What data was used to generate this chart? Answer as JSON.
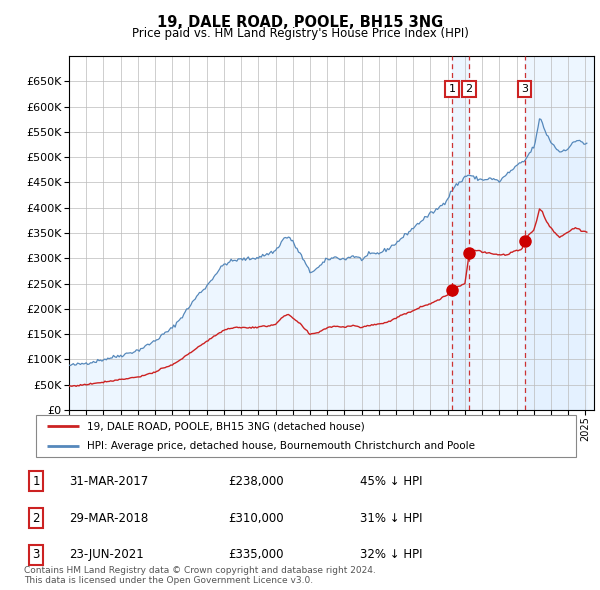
{
  "title": "19, DALE ROAD, POOLE, BH15 3NG",
  "subtitle": "Price paid vs. HM Land Registry's House Price Index (HPI)",
  "hpi_legend": "HPI: Average price, detached house, Bournemouth Christchurch and Poole",
  "property_legend": "19, DALE ROAD, POOLE, BH15 3NG (detached house)",
  "footer_line1": "Contains HM Land Registry data © Crown copyright and database right 2024.",
  "footer_line2": "This data is licensed under the Open Government Licence v3.0.",
  "sales": [
    {
      "num": "1",
      "date": "31-MAR-2017",
      "price": "£238,000",
      "pct": "45% ↓ HPI"
    },
    {
      "num": "2",
      "date": "29-MAR-2018",
      "price": "£310,000",
      "pct": "31% ↓ HPI"
    },
    {
      "num": "3",
      "date": "23-JUN-2021",
      "price": "£335,000",
      "pct": "32% ↓ HPI"
    }
  ],
  "sale_dates_decimal": [
    2017.247,
    2018.247,
    2021.478
  ],
  "sale_prices": [
    238000,
    310000,
    335000
  ],
  "vline_color": "#CC3333",
  "sale_marker_color": "#CC0000",
  "hpi_line_color": "#5588BB",
  "hpi_fill_color": "#DDEEFF",
  "property_line_color": "#CC2222",
  "ylim": [
    0,
    700000
  ],
  "yticks": [
    0,
    50000,
    100000,
    150000,
    200000,
    250000,
    300000,
    350000,
    400000,
    450000,
    500000,
    550000,
    600000,
    650000
  ],
  "xlim_start": 1995.0,
  "xlim_end": 2025.5,
  "xticks": [
    1995,
    1996,
    1997,
    1998,
    1999,
    2000,
    2001,
    2002,
    2003,
    2004,
    2005,
    2006,
    2007,
    2008,
    2009,
    2010,
    2011,
    2012,
    2013,
    2014,
    2015,
    2016,
    2017,
    2018,
    2019,
    2020,
    2021,
    2022,
    2023,
    2024,
    2025
  ]
}
